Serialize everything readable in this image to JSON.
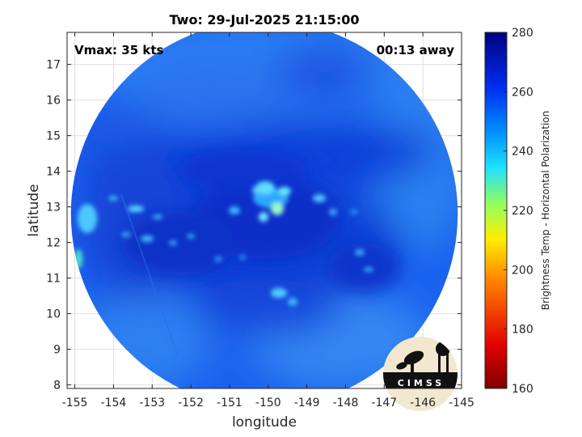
{
  "title": "Two: 29-Jul-2025 21:15:00",
  "vmax_label": "Vmax: 35 kts",
  "time_away_label": "00:13 away",
  "colorbar": {
    "label": "Brightness Temp - Horizontal Polarization",
    "min": 160,
    "max": 280,
    "ticks": [
      "160",
      "180",
      "200",
      "220",
      "240",
      "260",
      "280"
    ]
  },
  "logo": {
    "text": "CIMSS"
  },
  "chart_data": {
    "type": "heatmap",
    "title": "Two: 29-Jul-2025 21:15:00",
    "xlabel": "longitude",
    "ylabel": "latitude",
    "xlim": [
      -155.2,
      -145
    ],
    "ylim": [
      7.9,
      17.9
    ],
    "x_ticks": [
      "-155",
      "-154",
      "-153",
      "-152",
      "-151",
      "-150",
      "-149",
      "-148",
      "-147",
      "-146",
      "-145"
    ],
    "y_ticks": [
      "8",
      "9",
      "10",
      "11",
      "12",
      "13",
      "14",
      "15",
      "16",
      "17"
    ],
    "grid": true,
    "swath": {
      "center_lon": -150.1,
      "center_lat": 12.8,
      "radius_deg": 5.0
    },
    "background_value": 252,
    "center": {
      "lon": -149.9,
      "lat": 12.9
    }
  }
}
